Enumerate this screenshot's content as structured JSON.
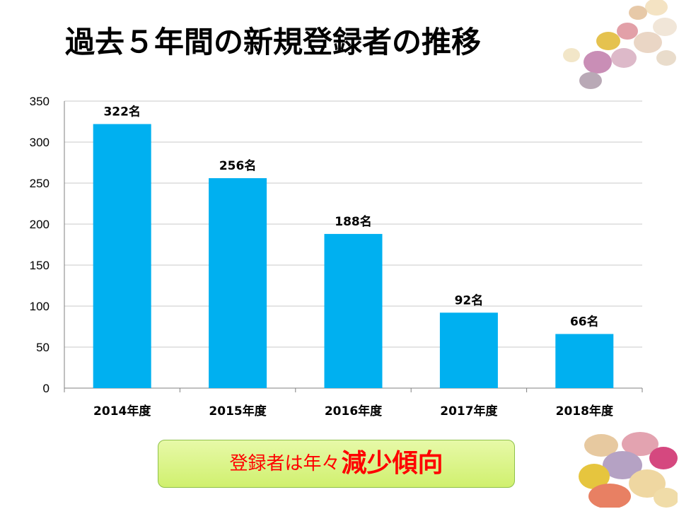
{
  "slide": {
    "title": "過去５年間の新規登録者の推移"
  },
  "colors": {
    "bar": "#00b0f0",
    "gridline": "#c8c8c8",
    "axis": "#808080",
    "callout_text": "#ff0000"
  },
  "chart_data": {
    "type": "bar",
    "categories": [
      "2014年度",
      "2015年度",
      "2016年度",
      "2017年度",
      "2018年度"
    ],
    "values": [
      322,
      256,
      188,
      92,
      66
    ],
    "data_labels": [
      "322名",
      "256名",
      "188名",
      "92名",
      "66名"
    ],
    "yticks": [
      0,
      50,
      100,
      150,
      200,
      250,
      300,
      350
    ],
    "ylim": [
      0,
      350
    ],
    "grid": true,
    "legend": "none"
  },
  "callout": {
    "lead": "登録者は年々",
    "emphasis": "減少傾向"
  }
}
